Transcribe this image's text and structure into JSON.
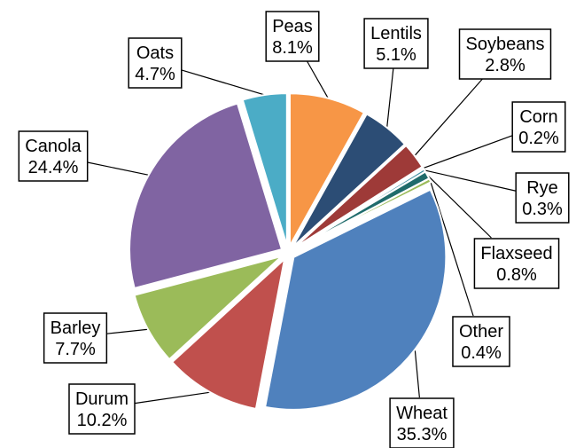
{
  "chart_data": {
    "type": "pie",
    "categories": [
      "Peas",
      "Lentils",
      "Soybeans",
      "Corn",
      "Rye",
      "Flaxseed",
      "Other",
      "Wheat",
      "Durum",
      "Barley",
      "Canola",
      "Oats"
    ],
    "values": [
      8.1,
      5.1,
      2.8,
      0.2,
      0.3,
      0.8,
      0.4,
      35.3,
      10.2,
      7.7,
      24.4,
      4.7
    ],
    "value_labels": [
      "8.1%",
      "5.1%",
      "2.8%",
      "0.2%",
      "0.3%",
      "0.8%",
      "0.4%",
      "35.3%",
      "10.2%",
      "7.7%",
      "24.4%",
      "4.7%"
    ],
    "colors": [
      "#f79646",
      "#2c4d75",
      "#9e3a38",
      "#7f6a9f",
      "#3f8fa3",
      "#1f6b6b",
      "#9bbb59",
      "#4f81bd",
      "#c0504d",
      "#9bbb59",
      "#8064a2",
      "#4bacc6"
    ]
  }
}
